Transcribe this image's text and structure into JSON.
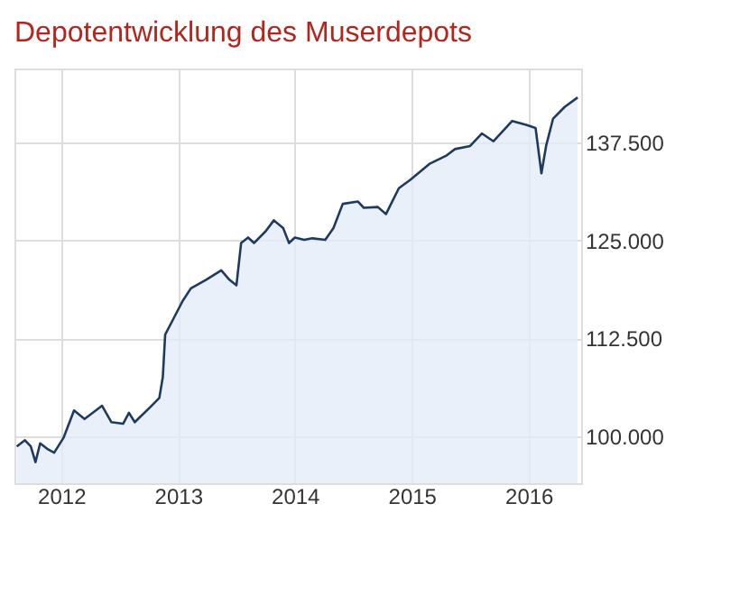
{
  "chart_data": {
    "type": "area",
    "title": "Depotentwicklung des Muserdepots",
    "x": [
      2011.62,
      2011.69,
      2011.74,
      2011.78,
      2011.82,
      2011.88,
      2011.94,
      2012.02,
      2012.11,
      2012.2,
      2012.35,
      2012.43,
      2012.53,
      2012.58,
      2012.63,
      2012.76,
      2012.84,
      2012.87,
      2012.89,
      2012.96,
      2013.04,
      2013.11,
      2013.24,
      2013.37,
      2013.44,
      2013.5,
      2013.54,
      2013.6,
      2013.65,
      2013.75,
      2013.82,
      2013.9,
      2013.95,
      2014.0,
      2014.08,
      2014.15,
      2014.26,
      2014.33,
      2014.41,
      2014.54,
      2014.59,
      2014.71,
      2014.78,
      2014.89,
      2014.99,
      2015.15,
      2015.3,
      2015.37,
      2015.5,
      2015.6,
      2015.7,
      2015.86,
      2015.98,
      2016.06,
      2016.11,
      2016.15,
      2016.21,
      2016.31,
      2016.42
    ],
    "series": [
      {
        "color": "#1f3a5f",
        "values": [
          98700,
          99500,
          98700,
          96700,
          99100,
          98400,
          97900,
          99800,
          103300,
          102200,
          103900,
          101800,
          101600,
          103000,
          101800,
          103700,
          104900,
          107600,
          113000,
          115000,
          117300,
          118900,
          120000,
          121200,
          120000,
          119300,
          124700,
          125400,
          124700,
          126200,
          127600,
          126600,
          124700,
          125400,
          125100,
          125300,
          125100,
          126600,
          129700,
          130000,
          129200,
          129300,
          128400,
          131700,
          132800,
          134800,
          135900,
          136700,
          137100,
          138700,
          137700,
          140300,
          139800,
          139400,
          133600,
          137100,
          140600,
          142100,
          143300
        ]
      }
    ],
    "xlim": [
      2011.6,
      2016.45
    ],
    "xticks": [
      2012,
      2013,
      2014,
      2015,
      2016
    ],
    "ylim": [
      94000,
      147000
    ],
    "yticks": [
      {
        "value": 100000,
        "label": "100.000"
      },
      {
        "value": 112500,
        "label": "112.500"
      },
      {
        "value": 125000,
        "label": "125.000"
      },
      {
        "value": 137500,
        "label": "137.500"
      }
    ],
    "grid": true
  }
}
